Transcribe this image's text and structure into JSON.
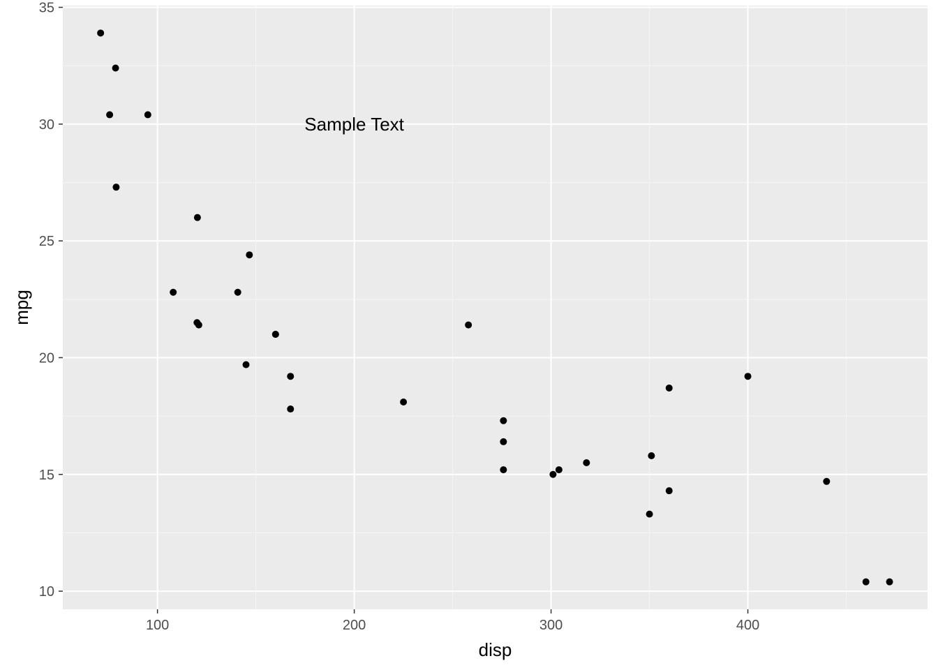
{
  "chart_data": {
    "type": "scatter",
    "title": "",
    "xlabel": "disp",
    "ylabel": "mpg",
    "xlim": [
      51.9,
      491.3
    ],
    "ylim": [
      9.225,
      35.075
    ],
    "x_ticks": [
      100,
      200,
      300,
      400
    ],
    "x_ticks_minor": [
      150,
      250,
      350,
      450
    ],
    "y_ticks": [
      10,
      15,
      20,
      25,
      30,
      35
    ],
    "y_ticks_minor": [
      12.5,
      17.5,
      22.5,
      27.5,
      32.5
    ],
    "grid": true,
    "point_color": "#000000",
    "annotation": {
      "text": "Sample Text",
      "x": 200,
      "y": 30
    },
    "points": [
      {
        "x": 160,
        "y": 21.0
      },
      {
        "x": 160,
        "y": 21.0
      },
      {
        "x": 108,
        "y": 22.8
      },
      {
        "x": 258,
        "y": 21.4
      },
      {
        "x": 360,
        "y": 18.7
      },
      {
        "x": 225,
        "y": 18.1
      },
      {
        "x": 360,
        "y": 14.3
      },
      {
        "x": 146.7,
        "y": 24.4
      },
      {
        "x": 140.8,
        "y": 22.8
      },
      {
        "x": 167.6,
        "y": 19.2
      },
      {
        "x": 167.6,
        "y": 17.8
      },
      {
        "x": 275.8,
        "y": 16.4
      },
      {
        "x": 275.8,
        "y": 17.3
      },
      {
        "x": 275.8,
        "y": 15.2
      },
      {
        "x": 472,
        "y": 10.4
      },
      {
        "x": 460,
        "y": 10.4
      },
      {
        "x": 440,
        "y": 14.7
      },
      {
        "x": 78.7,
        "y": 32.4
      },
      {
        "x": 75.7,
        "y": 30.4
      },
      {
        "x": 71.1,
        "y": 33.9
      },
      {
        "x": 120.1,
        "y": 21.5
      },
      {
        "x": 318,
        "y": 15.5
      },
      {
        "x": 304,
        "y": 15.2
      },
      {
        "x": 350,
        "y": 13.3
      },
      {
        "x": 400,
        "y": 19.2
      },
      {
        "x": 79,
        "y": 27.3
      },
      {
        "x": 120.3,
        "y": 26.0
      },
      {
        "x": 95.1,
        "y": 30.4
      },
      {
        "x": 351,
        "y": 15.8
      },
      {
        "x": 145,
        "y": 19.7
      },
      {
        "x": 301,
        "y": 15.0
      },
      {
        "x": 121,
        "y": 21.4
      }
    ]
  },
  "colors": {
    "panel_background": "#ebebeb",
    "grid_major": "#ffffff",
    "grid_minor": "#f5f5f5",
    "tick_text": "#4d4d4d",
    "axis_title": "#000000"
  }
}
